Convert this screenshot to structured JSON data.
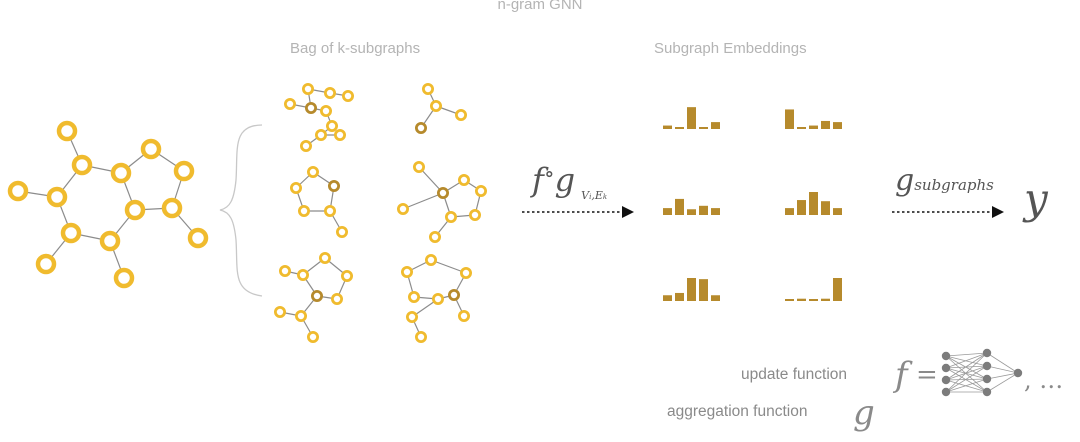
{
  "title": "n-gram GNN",
  "bag_label": "Bag of k-subgraphs",
  "embed_label": "Subgraph Embeddings",
  "formula": {
    "f": "f",
    "compose": "∘",
    "g": "g",
    "v": "V",
    "i": "i",
    "e": "E",
    "k": "k",
    "g_sub": "subgraphs",
    "y": "y"
  },
  "legend": {
    "update": "update function",
    "aggregation": "aggregation function",
    "eq": "=",
    "ellipsis": ", …"
  },
  "colors": {
    "node": "#f0bb2e",
    "node_dark": "#b68a2c",
    "bar": "#b68a2c",
    "edge": "#8c8c8c",
    "nn_node": "#7c7c7c"
  },
  "embeddings": [
    [
      0.15,
      0.05,
      0.95,
      0.05,
      0.3
    ],
    [
      0.85,
      0.05,
      0.15,
      0.35,
      0.3
    ],
    [
      0.3,
      0.7,
      0.25,
      0.4,
      0.3
    ],
    [
      0.3,
      0.65,
      1.0,
      0.6,
      0.3
    ],
    [
      0.25,
      0.35,
      1.0,
      0.95,
      0.25
    ],
    [
      0.05,
      0.1,
      0.05,
      0.1,
      1.0
    ]
  ]
}
